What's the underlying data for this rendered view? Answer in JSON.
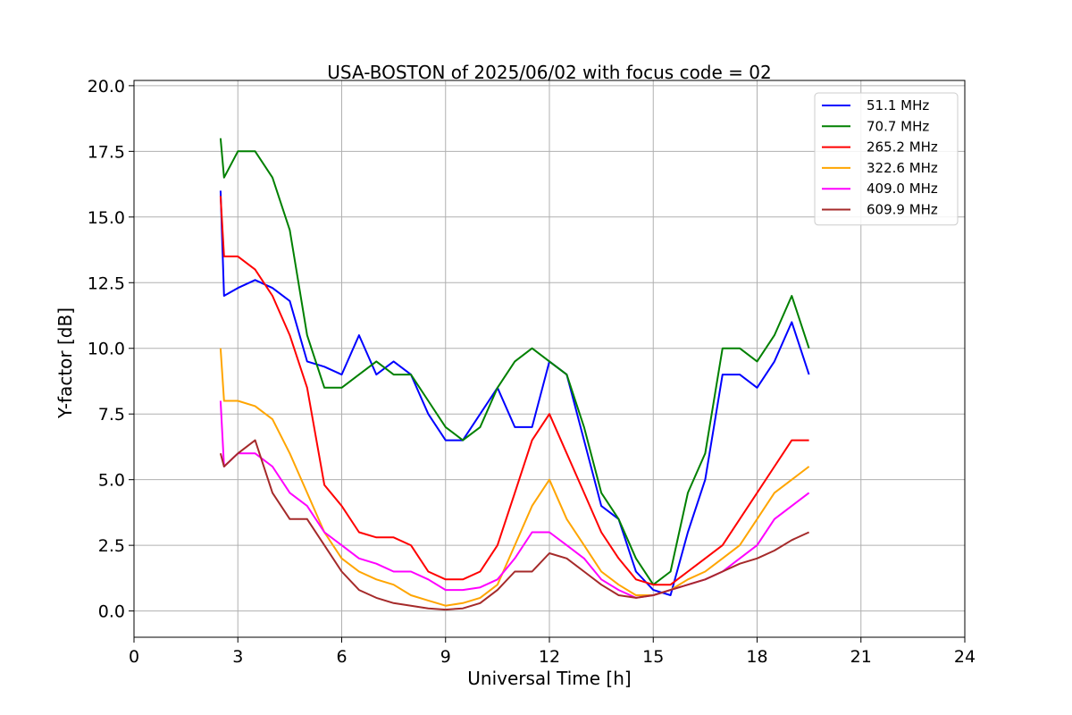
{
  "chart_data": {
    "type": "line",
    "title": "USA-BOSTON of 2025/06/02 with focus code = 02",
    "xlabel": "Universal Time [h]",
    "ylabel": "Y-factor [dB]",
    "xlim": [
      0,
      24
    ],
    "ylim": [
      -1.0,
      20.2
    ],
    "xticks": [
      0,
      3,
      6,
      9,
      12,
      15,
      18,
      21,
      24
    ],
    "xtick_labels": [
      "0",
      "3",
      "6",
      "9",
      "12",
      "15",
      "18",
      "21",
      "24"
    ],
    "yticks": [
      0,
      2.5,
      5,
      7.5,
      10,
      12.5,
      15,
      17.5,
      20
    ],
    "ytick_labels": [
      "0.0",
      "2.5",
      "5.0",
      "7.5",
      "10.0",
      "12.5",
      "15.0",
      "17.5",
      "20.0"
    ],
    "grid": true,
    "legend_position": "top-right",
    "series": [
      {
        "name": " 51.1 MHz",
        "color": "#0000ff",
        "x": [
          2.5,
          2.6,
          3.0,
          3.5,
          4.0,
          4.5,
          5.0,
          5.5,
          6.0,
          6.5,
          7.0,
          7.5,
          8.0,
          8.5,
          9.0,
          9.5,
          10.0,
          10.5,
          11.0,
          11.5,
          12.0,
          12.5,
          13.0,
          13.5,
          14.0,
          14.5,
          15.0,
          15.5,
          16.0,
          16.5,
          17.0,
          17.5,
          18.0,
          18.5,
          19.0,
          19.5
        ],
        "y": [
          16.0,
          12.0,
          12.3,
          12.6,
          12.3,
          11.8,
          9.5,
          9.3,
          9.0,
          10.5,
          9.0,
          9.5,
          9.0,
          7.5,
          6.5,
          6.5,
          7.5,
          8.5,
          7.0,
          7.0,
          9.5,
          9.0,
          6.5,
          4.0,
          3.5,
          1.5,
          0.8,
          0.6,
          3.0,
          5.0,
          9.0,
          9.0,
          8.5,
          9.5,
          11.0,
          9.0
        ]
      },
      {
        "name": " 70.7 MHz",
        "color": "#008000",
        "x": [
          2.5,
          2.6,
          3.0,
          3.5,
          4.0,
          4.5,
          5.0,
          5.5,
          6.0,
          6.5,
          7.0,
          7.5,
          8.0,
          8.5,
          9.0,
          9.5,
          10.0,
          10.5,
          11.0,
          11.5,
          12.0,
          12.5,
          13.0,
          13.5,
          14.0,
          14.5,
          15.0,
          15.5,
          16.0,
          16.5,
          17.0,
          17.5,
          18.0,
          18.5,
          19.0,
          19.5
        ],
        "y": [
          18.0,
          16.5,
          17.5,
          17.5,
          16.5,
          14.5,
          10.5,
          8.5,
          8.5,
          9.0,
          9.5,
          9.0,
          9.0,
          8.0,
          7.0,
          6.5,
          7.0,
          8.5,
          9.5,
          10.0,
          9.5,
          9.0,
          7.0,
          4.5,
          3.5,
          2.0,
          1.0,
          1.5,
          4.5,
          6.0,
          10.0,
          10.0,
          9.5,
          10.5,
          12.0,
          10.0
        ]
      },
      {
        "name": "265.2 MHz",
        "color": "#ff0000",
        "x": [
          2.5,
          2.6,
          3.0,
          3.5,
          4.0,
          4.5,
          5.0,
          5.5,
          6.0,
          6.5,
          7.0,
          7.5,
          8.0,
          8.5,
          9.0,
          9.5,
          10.0,
          10.5,
          11.0,
          11.5,
          12.0,
          12.5,
          13.0,
          13.5,
          14.0,
          14.5,
          15.0,
          15.5,
          16.0,
          16.5,
          17.0,
          17.5,
          18.0,
          18.5,
          19.0,
          19.5
        ],
        "y": [
          15.8,
          13.5,
          13.5,
          13.0,
          12.0,
          10.5,
          8.5,
          4.8,
          4.0,
          3.0,
          2.8,
          2.8,
          2.5,
          1.5,
          1.2,
          1.2,
          1.5,
          2.5,
          4.5,
          6.5,
          7.5,
          6.0,
          4.5,
          3.0,
          2.0,
          1.2,
          1.0,
          1.0,
          1.5,
          2.0,
          2.5,
          3.5,
          4.5,
          5.5,
          6.5,
          6.5
        ]
      },
      {
        "name": "322.6 MHz",
        "color": "#ffa500",
        "x": [
          2.5,
          2.6,
          3.0,
          3.5,
          4.0,
          4.5,
          5.0,
          5.5,
          6.0,
          6.5,
          7.0,
          7.5,
          8.0,
          8.5,
          9.0,
          9.5,
          10.0,
          10.5,
          11.0,
          11.5,
          12.0,
          12.5,
          13.0,
          13.5,
          14.0,
          14.5,
          15.0,
          15.5,
          16.0,
          16.5,
          17.0,
          17.5,
          18.0,
          18.5,
          19.0,
          19.5
        ],
        "y": [
          10.0,
          8.0,
          8.0,
          7.8,
          7.3,
          6.0,
          4.5,
          3.0,
          2.0,
          1.5,
          1.2,
          1.0,
          0.6,
          0.4,
          0.2,
          0.3,
          0.5,
          1.0,
          2.5,
          4.0,
          5.0,
          3.5,
          2.5,
          1.5,
          1.0,
          0.6,
          0.6,
          0.8,
          1.2,
          1.5,
          2.0,
          2.5,
          3.5,
          4.5,
          5.0,
          5.5
        ]
      },
      {
        "name": "409.0 MHz",
        "color": "#ff00ff",
        "x": [
          2.5,
          2.6,
          3.0,
          3.5,
          4.0,
          4.5,
          5.0,
          5.5,
          6.0,
          6.5,
          7.0,
          7.5,
          8.0,
          8.5,
          9.0,
          9.5,
          10.0,
          10.5,
          11.0,
          11.5,
          12.0,
          12.5,
          13.0,
          13.5,
          14.0,
          14.5,
          15.0,
          15.5,
          16.0,
          16.5,
          17.0,
          17.5,
          18.0,
          18.5,
          19.0,
          19.5
        ],
        "y": [
          8.0,
          5.5,
          6.0,
          6.0,
          5.5,
          4.5,
          4.0,
          3.0,
          2.5,
          2.0,
          1.8,
          1.5,
          1.5,
          1.2,
          0.8,
          0.8,
          0.9,
          1.2,
          2.0,
          3.0,
          3.0,
          2.5,
          2.0,
          1.2,
          0.8,
          0.5,
          0.6,
          0.8,
          1.0,
          1.2,
          1.5,
          2.0,
          2.5,
          3.5,
          4.0,
          4.5
        ]
      },
      {
        "name": "609.9 MHz",
        "color": "#a52a2a",
        "x": [
          2.5,
          2.6,
          3.0,
          3.5,
          4.0,
          4.5,
          5.0,
          5.5,
          6.0,
          6.5,
          7.0,
          7.5,
          8.0,
          8.5,
          9.0,
          9.5,
          10.0,
          10.5,
          11.0,
          11.5,
          12.0,
          12.5,
          13.0,
          13.5,
          14.0,
          14.5,
          15.0,
          15.5,
          16.0,
          16.5,
          17.0,
          17.5,
          18.0,
          18.5,
          19.0,
          19.5
        ],
        "y": [
          6.0,
          5.5,
          6.0,
          6.5,
          4.5,
          3.5,
          3.5,
          2.5,
          1.5,
          0.8,
          0.5,
          0.3,
          0.2,
          0.1,
          0.05,
          0.1,
          0.3,
          0.8,
          1.5,
          1.5,
          2.2,
          2.0,
          1.5,
          1.0,
          0.6,
          0.5,
          0.6,
          0.8,
          1.0,
          1.2,
          1.5,
          1.8,
          2.0,
          2.3,
          2.7,
          3.0
        ]
      }
    ]
  }
}
